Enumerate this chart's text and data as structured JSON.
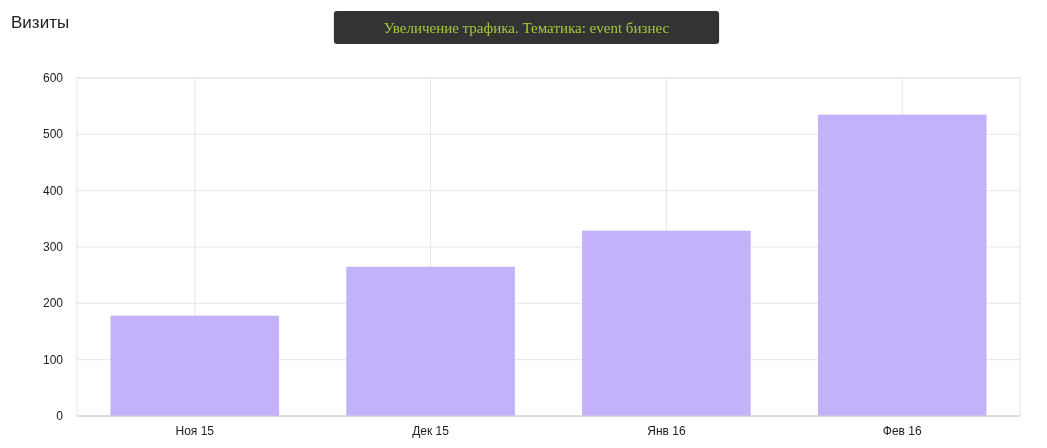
{
  "chart_data": {
    "type": "bar",
    "title": "Увеличение трафика. Тематика: event бизнес",
    "ylabel": "Визиты",
    "categories": [
      "Ноя 15",
      "Дек 15",
      "Янв 16",
      "Фев 16"
    ],
    "values": [
      178,
      265,
      329,
      535
    ],
    "color": "#c3b1f9",
    "ylim": [
      0,
      600
    ],
    "yticks": [
      0,
      100,
      200,
      300,
      400,
      500,
      600
    ],
    "grid": true
  }
}
